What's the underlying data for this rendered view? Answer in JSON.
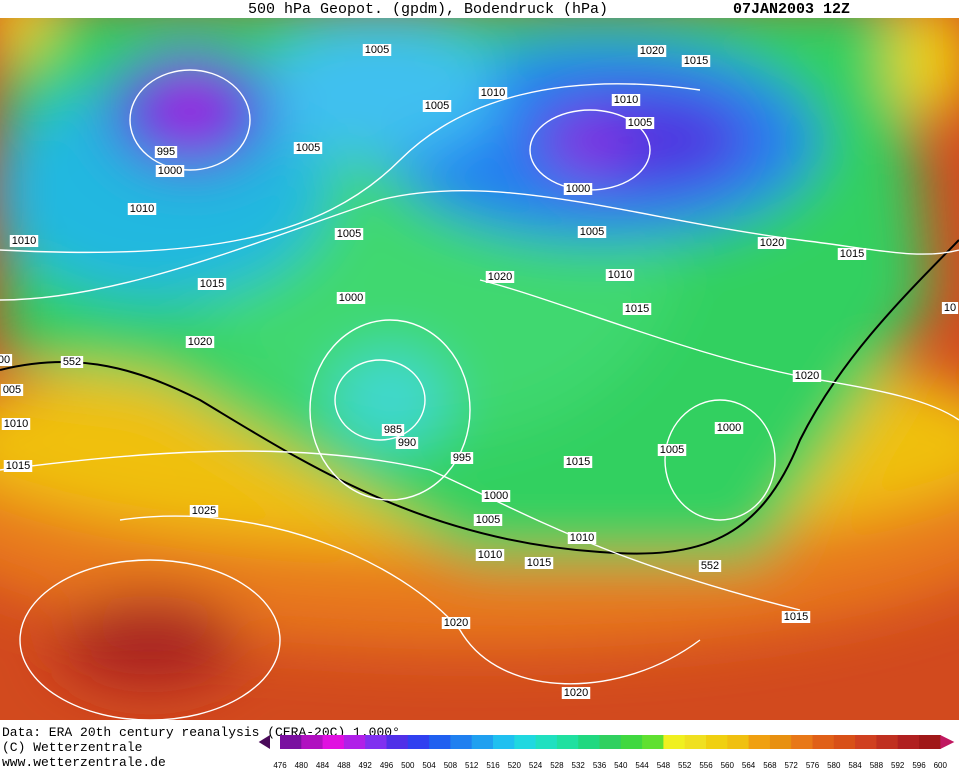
{
  "header": {
    "title": "500 hPa Geopot. (gpdm), Bodendruck (hPa)",
    "date": "07JAN2003 12Z"
  },
  "isobar_labels": [
    "1005",
    "1005",
    "1010",
    "1005",
    "995",
    "1000",
    "1010",
    "1010",
    "1005",
    "1015",
    "1000",
    "1020",
    "552",
    "005",
    "1010",
    "1015",
    "985",
    "990",
    "995",
    "1000",
    "1005",
    "1010",
    "1015",
    "1010",
    "1015",
    "1005",
    "1000",
    "1020",
    "1020",
    "1010",
    "1015",
    "1005",
    "1000",
    "1005",
    "1010",
    "1015",
    "1020",
    "1020",
    "1015",
    "1025",
    "1020",
    "552",
    "1015",
    "1020",
    "00",
    "10"
  ],
  "footer": {
    "source": "Data: ERA 20th century reanalysis (CERA-20C) 1.000°",
    "copyright": "(C) Wetterzentrale",
    "url": "www.wetterzentrale.de"
  },
  "legend": {
    "values": [
      476,
      480,
      484,
      488,
      492,
      496,
      500,
      504,
      508,
      512,
      516,
      520,
      524,
      528,
      532,
      536,
      540,
      544,
      548,
      552,
      556,
      560,
      564,
      568,
      572,
      576,
      580,
      584,
      588,
      592,
      596,
      600
    ]
  }
}
